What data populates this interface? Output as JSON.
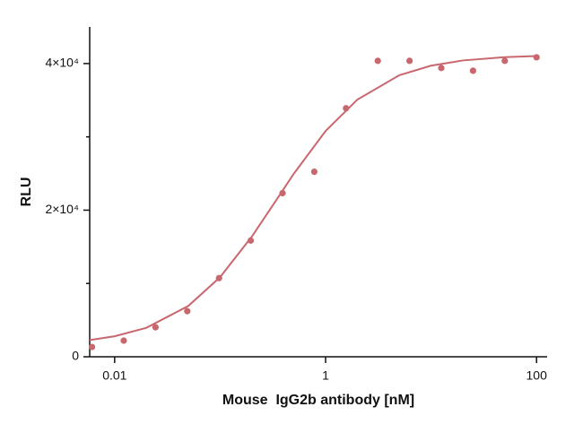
{
  "chart_data": {
    "type": "scatter",
    "x_label": "Mouse  IgG2b antibody [nM]",
    "y_label": "RLU",
    "xscale": "log",
    "xlim": [
      0.0058,
      126
    ],
    "xticks": [
      0.01,
      1,
      100
    ],
    "ylim": [
      0,
      45000
    ],
    "yticks": [
      0,
      {
        "value": 20000,
        "label": "2×10⁴"
      },
      {
        "value": 40000,
        "label": "4×10⁴"
      }
    ],
    "yminorticks": [
      10000,
      30000
    ],
    "color": "#c9676f",
    "points": {
      "x": [
        0.0061,
        0.0122,
        0.0244,
        0.0488,
        0.0977,
        0.195,
        0.390625,
        0.78125,
        1.5625,
        3.125,
        6.25,
        12.5,
        25,
        50,
        100
      ],
      "y": [
        1340,
        2200,
        4020,
        6220,
        10730,
        15850,
        22320,
        25240,
        33900,
        40370,
        40370,
        39390,
        39020,
        40370,
        40850
      ]
    },
    "curve": {
      "x": [
        0.0058,
        0.01,
        0.02,
        0.05,
        0.1,
        0.2,
        0.34,
        0.5,
        1,
        2,
        5,
        10,
        20,
        50,
        100
      ],
      "y": [
        2281,
        2802,
        3954,
        6938,
        10863,
        16397,
        21350,
        24977,
        30799,
        35073,
        38406,
        39713,
        40422,
        40873,
        41032
      ]
    }
  }
}
